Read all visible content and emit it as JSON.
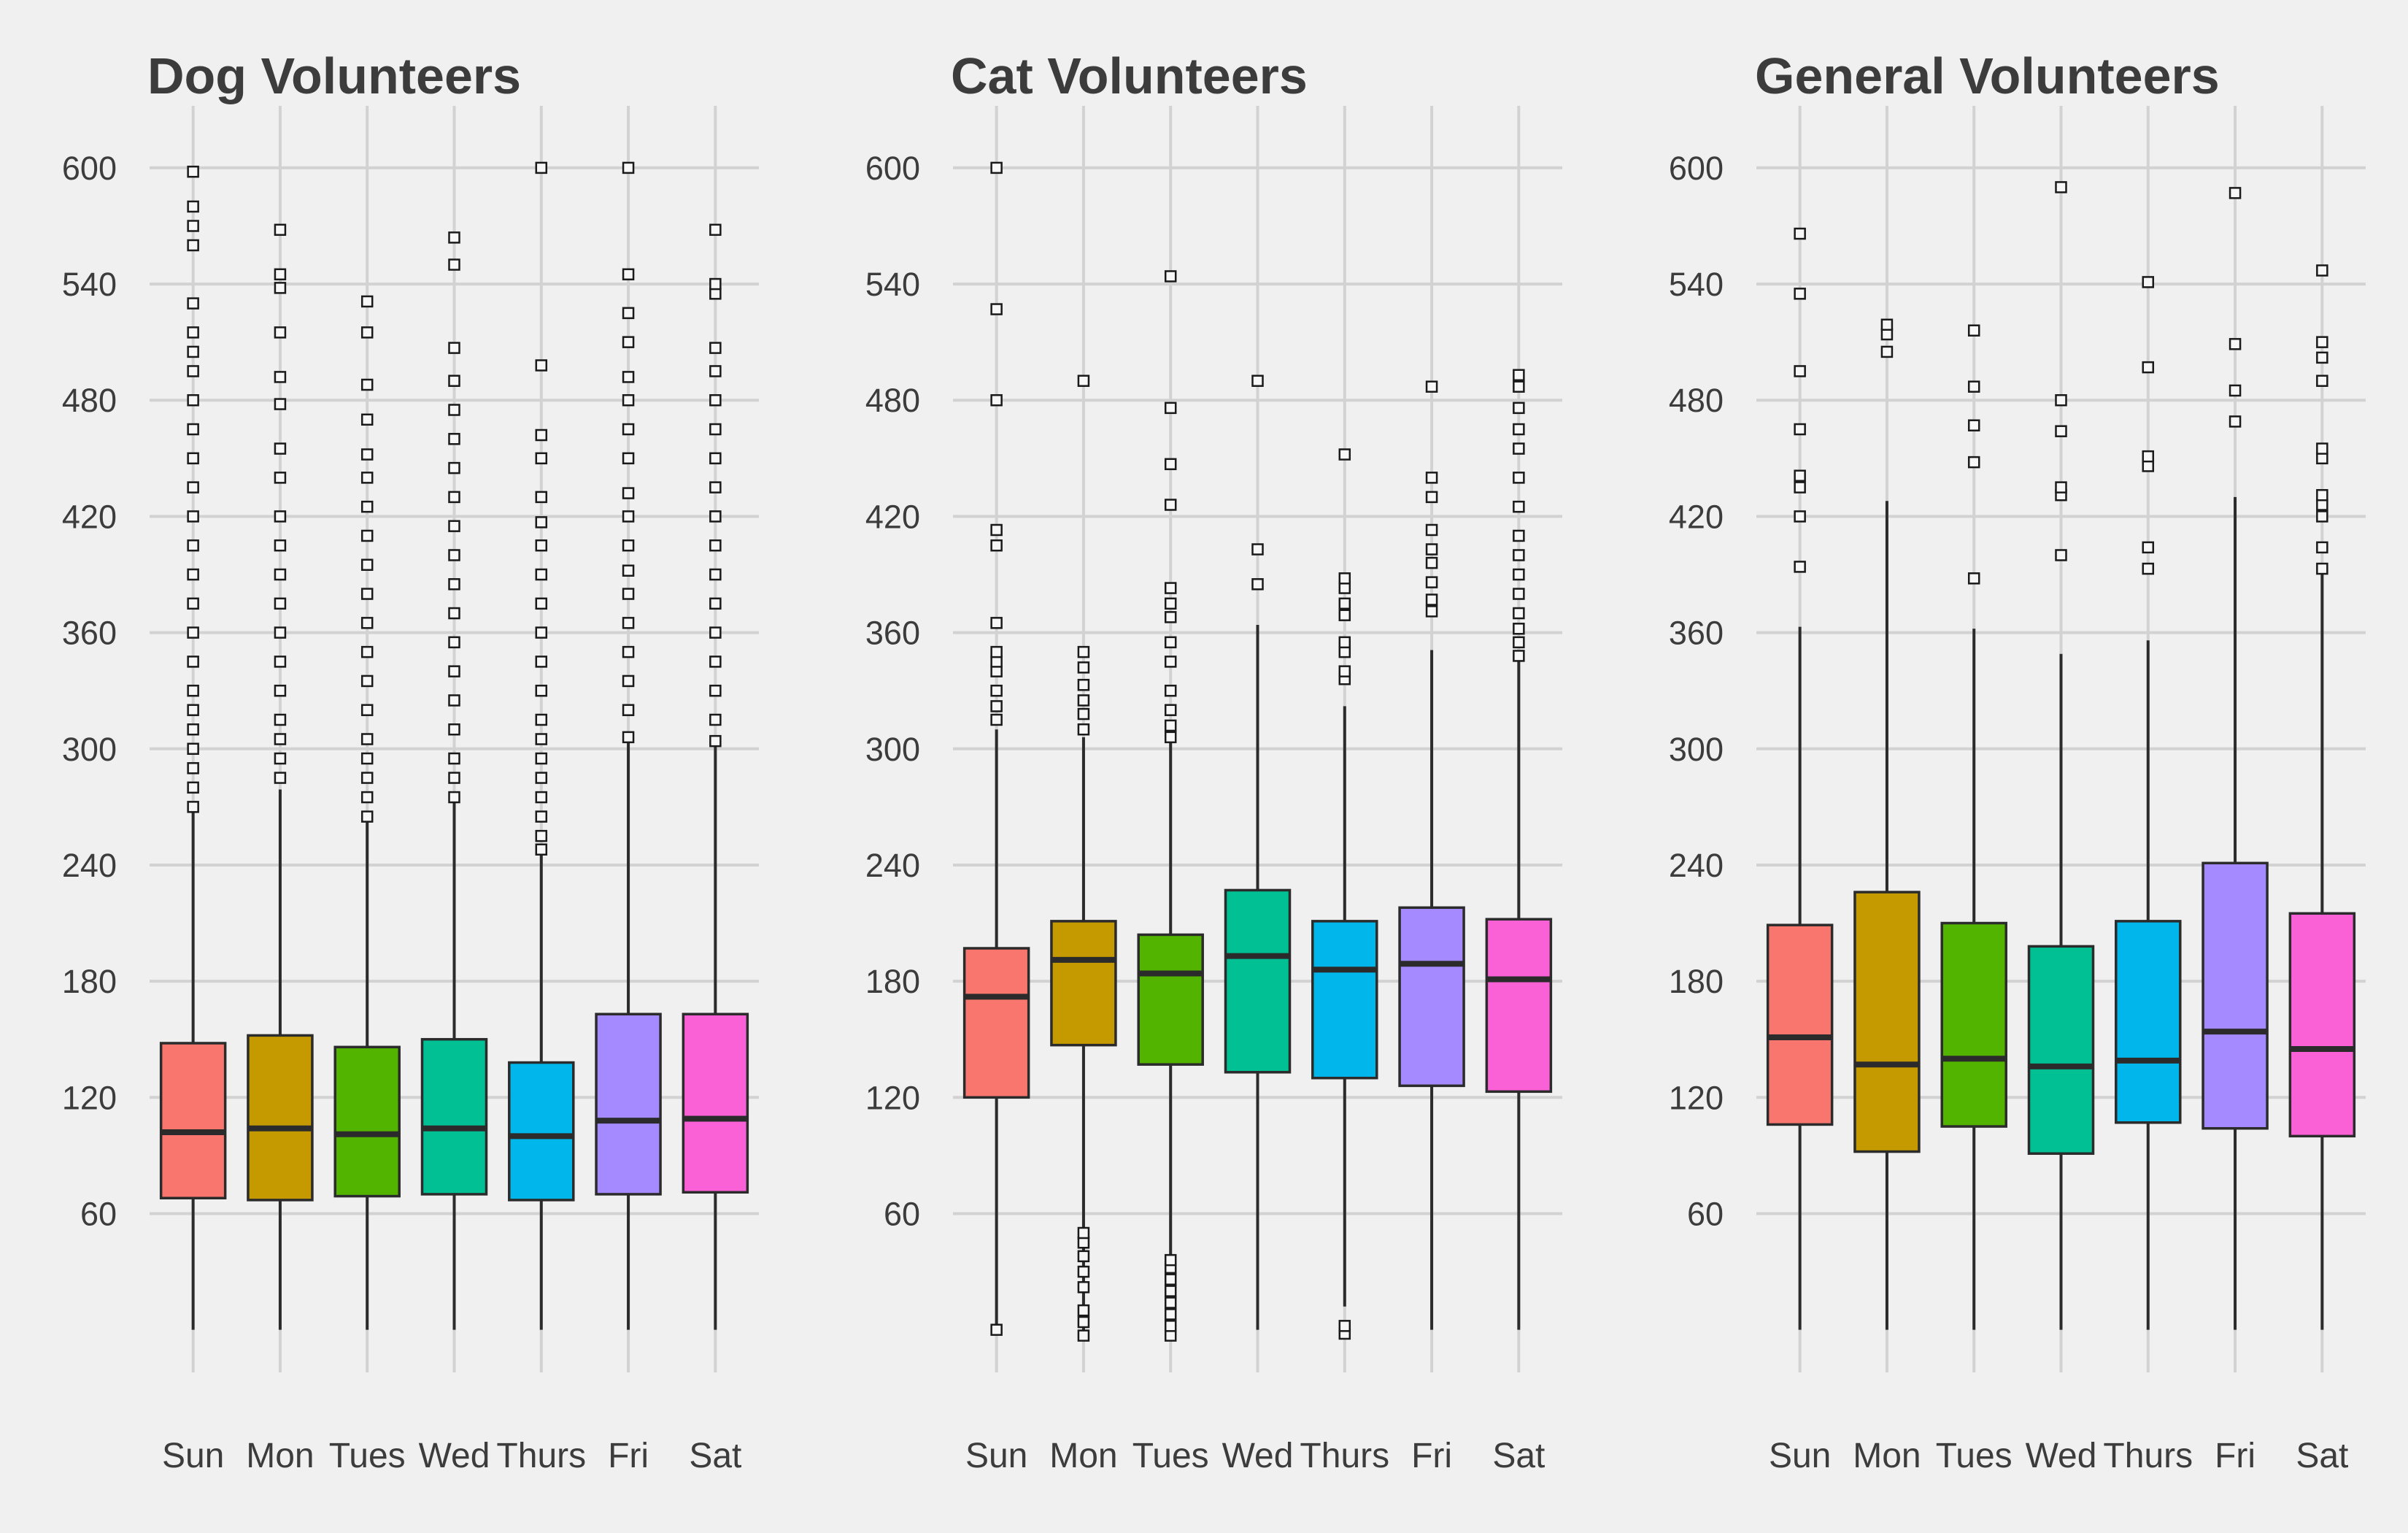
{
  "chart_data": [
    {
      "type": "boxplot",
      "title": "Dog Volunteers",
      "xlabel": "",
      "ylabel": "",
      "categories": [
        "Sun",
        "Mon",
        "Tues",
        "Wed",
        "Thurs",
        "Fri",
        "Sat"
      ],
      "yticks": [
        60,
        120,
        180,
        240,
        300,
        360,
        420,
        480,
        540,
        600
      ],
      "ylim": [
        -22,
        632
      ],
      "grid": true,
      "legend": "none",
      "boxes": [
        {
          "min": 0,
          "q1": 68,
          "median": 102,
          "q3": 148,
          "max": 267,
          "outliers": [
            270,
            280,
            290,
            300,
            310,
            320,
            330,
            345,
            360,
            375,
            390,
            405,
            420,
            435,
            450,
            465,
            480,
            495,
            505,
            515,
            530,
            560,
            570,
            580,
            598
          ]
        },
        {
          "min": 0,
          "q1": 67,
          "median": 104,
          "q3": 152,
          "max": 279,
          "outliers": [
            285,
            295,
            305,
            315,
            330,
            345,
            360,
            375,
            390,
            405,
            420,
            440,
            455,
            478,
            492,
            515,
            538,
            545,
            568
          ]
        },
        {
          "min": 0,
          "q1": 69,
          "median": 101,
          "q3": 146,
          "max": 262,
          "outliers": [
            265,
            275,
            285,
            295,
            305,
            320,
            335,
            350,
            365,
            380,
            395,
            410,
            425,
            440,
            452,
            470,
            488,
            515,
            531
          ]
        },
        {
          "min": 0,
          "q1": 70,
          "median": 104,
          "q3": 150,
          "max": 272,
          "outliers": [
            275,
            285,
            295,
            310,
            325,
            340,
            355,
            370,
            385,
            400,
            415,
            430,
            445,
            460,
            475,
            490,
            507,
            550,
            564
          ]
        },
        {
          "min": 0,
          "q1": 67,
          "median": 100,
          "q3": 138,
          "max": 245,
          "outliers": [
            248,
            255,
            265,
            275,
            285,
            295,
            305,
            315,
            330,
            345,
            360,
            375,
            390,
            405,
            417,
            430,
            450,
            462,
            498,
            600
          ]
        },
        {
          "min": 0,
          "q1": 70,
          "median": 108,
          "q3": 163,
          "max": 303,
          "outliers": [
            306,
            320,
            335,
            350,
            365,
            380,
            392,
            405,
            420,
            432,
            450,
            465,
            480,
            492,
            510,
            525,
            545,
            600
          ]
        },
        {
          "min": 0,
          "q1": 71,
          "median": 109,
          "q3": 163,
          "max": 302,
          "outliers": [
            304,
            315,
            330,
            345,
            360,
            375,
            390,
            405,
            420,
            435,
            450,
            465,
            480,
            495,
            507,
            535,
            540,
            568
          ]
        }
      ],
      "colors": [
        "#f8766d",
        "#c49a00",
        "#53b400",
        "#00c094",
        "#00b6eb",
        "#a58aff",
        "#fb61d7"
      ]
    },
    {
      "type": "boxplot",
      "title": "Cat Volunteers",
      "xlabel": "",
      "ylabel": "",
      "categories": [
        "Sun",
        "Mon",
        "Tues",
        "Wed",
        "Thurs",
        "Fri",
        "Sat"
      ],
      "yticks": [
        60,
        120,
        180,
        240,
        300,
        360,
        420,
        480,
        540,
        600
      ],
      "ylim": [
        -22,
        632
      ],
      "grid": true,
      "legend": "none",
      "boxes": [
        {
          "min": 0,
          "q1": 120,
          "median": 172,
          "q3": 197,
          "max": 310,
          "outliers": [
            0,
            315,
            322,
            330,
            340,
            345,
            350,
            365,
            405,
            413,
            480,
            527,
            600
          ]
        },
        {
          "min": 0,
          "q1": 147,
          "median": 191,
          "q3": 211,
          "max": 306,
          "outliers": [
            -3,
            4,
            10,
            22,
            30,
            38,
            45,
            50,
            310,
            318,
            325,
            333,
            342,
            350,
            490
          ]
        },
        {
          "min": 38,
          "q1": 137,
          "median": 184,
          "q3": 204,
          "max": 303,
          "outliers": [
            -3,
            2,
            8,
            14,
            20,
            26,
            32,
            36,
            306,
            312,
            320,
            330,
            345,
            355,
            368,
            375,
            383,
            426,
            447,
            476,
            544
          ]
        },
        {
          "min": 0,
          "q1": 133,
          "median": 193,
          "q3": 227,
          "max": 364,
          "outliers": [
            385,
            403,
            490
          ]
        },
        {
          "min": 12,
          "q1": 130,
          "median": 186,
          "q3": 211,
          "max": 322,
          "outliers": [
            -2,
            2,
            336,
            340,
            350,
            355,
            369,
            375,
            383,
            388,
            452
          ]
        },
        {
          "min": 0,
          "q1": 126,
          "median": 189,
          "q3": 218,
          "max": 351,
          "outliers": [
            371,
            377,
            386,
            396,
            403,
            413,
            430,
            440,
            487
          ]
        },
        {
          "min": 0,
          "q1": 123,
          "median": 181,
          "q3": 212,
          "max": 346,
          "outliers": [
            348,
            355,
            362,
            370,
            380,
            390,
            400,
            410,
            425,
            440,
            455,
            465,
            476,
            487,
            493
          ]
        }
      ],
      "colors": [
        "#f8766d",
        "#c49a00",
        "#53b400",
        "#00c094",
        "#00b6eb",
        "#a58aff",
        "#fb61d7"
      ]
    },
    {
      "type": "boxplot",
      "title": "General Volunteers",
      "xlabel": "",
      "ylabel": "",
      "categories": [
        "Sun",
        "Mon",
        "Tues",
        "Wed",
        "Thurs",
        "Fri",
        "Sat"
      ],
      "yticks": [
        60,
        120,
        180,
        240,
        300,
        360,
        420,
        480,
        540,
        600
      ],
      "ylim": [
        -22,
        632
      ],
      "grid": true,
      "legend": "none",
      "boxes": [
        {
          "min": 0,
          "q1": 106,
          "median": 151,
          "q3": 209,
          "max": 363,
          "outliers": [
            394,
            420,
            435,
            441,
            465,
            495,
            535,
            566
          ]
        },
        {
          "min": 0,
          "q1": 92,
          "median": 137,
          "q3": 226,
          "max": 428,
          "outliers": [
            505,
            514,
            519
          ]
        },
        {
          "min": 0,
          "q1": 105,
          "median": 140,
          "q3": 210,
          "max": 362,
          "outliers": [
            388,
            448,
            467,
            487,
            516
          ]
        },
        {
          "min": 0,
          "q1": 91,
          "median": 136,
          "q3": 198,
          "max": 349,
          "outliers": [
            400,
            431,
            435,
            464,
            480,
            590
          ]
        },
        {
          "min": 0,
          "q1": 107,
          "median": 139,
          "q3": 211,
          "max": 356,
          "outliers": [
            393,
            404,
            446,
            451,
            497,
            541
          ]
        },
        {
          "min": 0,
          "q1": 104,
          "median": 154,
          "q3": 241,
          "max": 430,
          "outliers": [
            469,
            485,
            509,
            587
          ]
        },
        {
          "min": 0,
          "q1": 100,
          "median": 145,
          "q3": 215,
          "max": 390,
          "outliers": [
            393,
            404,
            420,
            426,
            431,
            450,
            455,
            490,
            502,
            510,
            547
          ]
        }
      ],
      "colors": [
        "#f8766d",
        "#c49a00",
        "#53b400",
        "#00c094",
        "#00b6eb",
        "#a58aff",
        "#fb61d7"
      ]
    }
  ]
}
